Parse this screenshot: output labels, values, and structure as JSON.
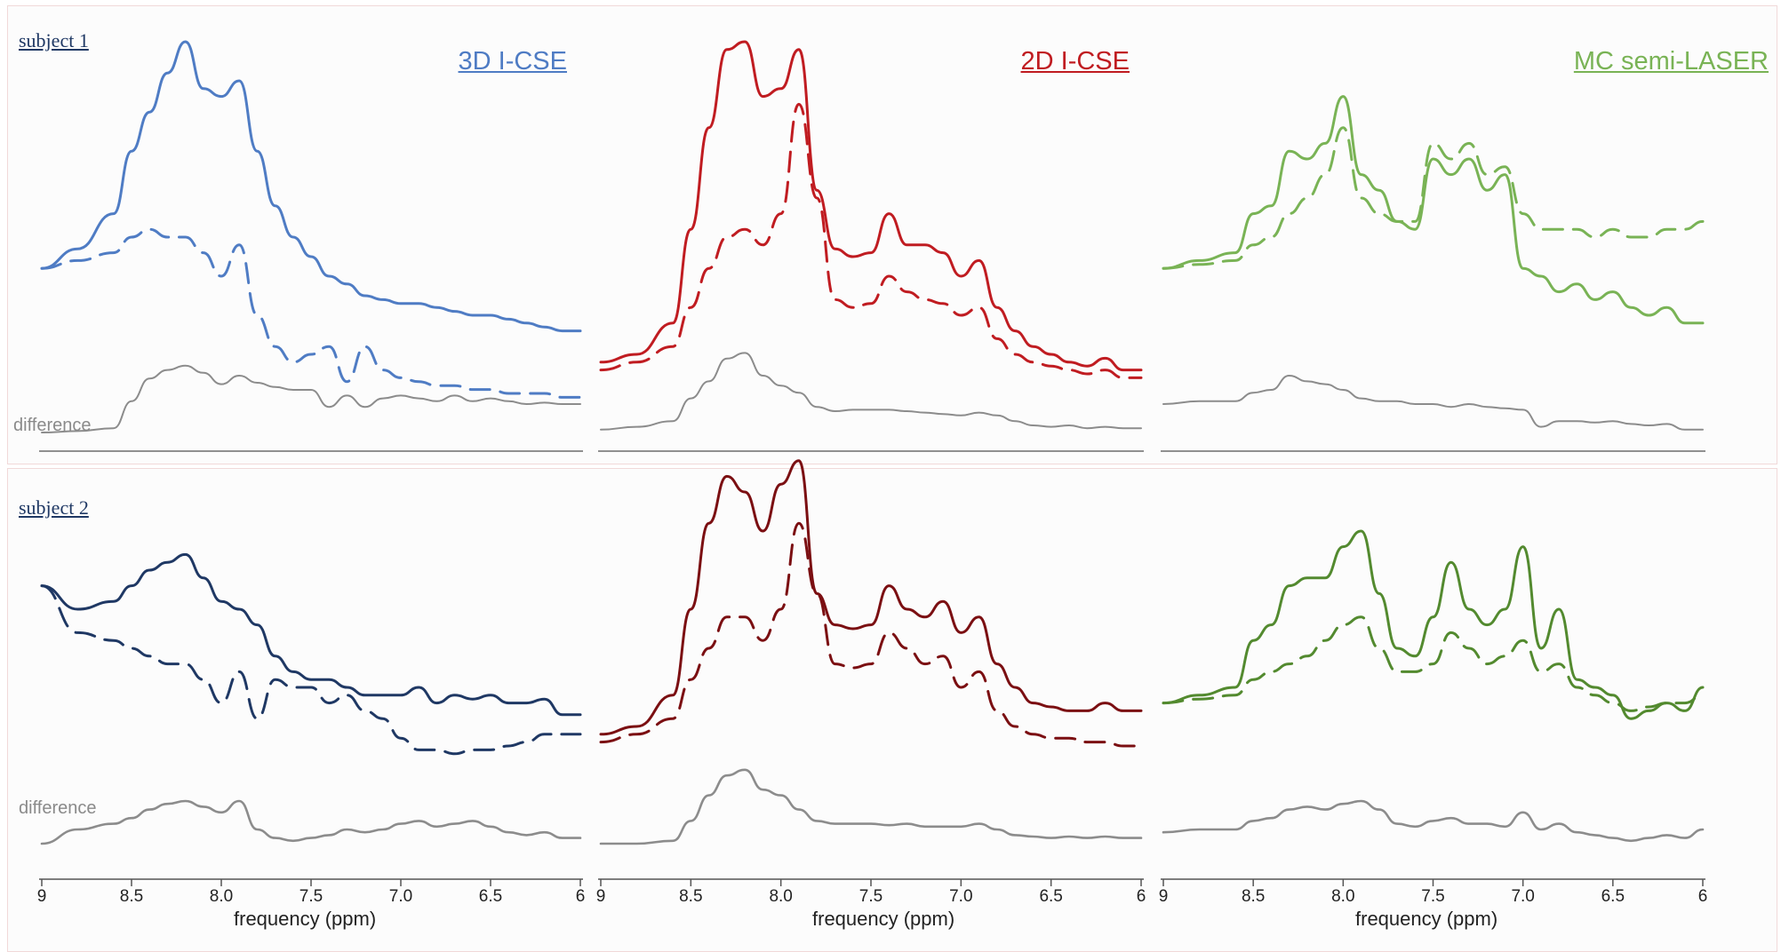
{
  "figure": {
    "subjects": [
      {
        "label": "subject 1",
        "difference_label": "difference"
      },
      {
        "label": "subject 2",
        "difference_label": "difference"
      }
    ],
    "methods": [
      {
        "title": "3D I-CSE",
        "color": "#4f7cc4"
      },
      {
        "title": "2D I-CSE",
        "color": "#c01c21"
      },
      {
        "title": "MC semi-LASER",
        "color": "#79b355"
      }
    ],
    "colors": {
      "subject2_3d": "#1f3864",
      "subject2_2d": "#7b0f12",
      "subject2_mc": "#538a2f",
      "difference": "#8c8c8c"
    }
  },
  "chart_data": [
    {
      "type": "line",
      "subject": "subject 1",
      "method": "3D I-CSE",
      "xlabel": "frequency (ppm)",
      "xlim": [
        9,
        6
      ],
      "x_reversed": true,
      "x_ticks": [
        9,
        8.5,
        8.0,
        7.5,
        7.0,
        6.5,
        6
      ],
      "x_tick_labels": [
        "9",
        "8.5",
        "8.0",
        "7.5",
        "7.0",
        "6.5",
        "6"
      ],
      "x": [
        9.0,
        8.8,
        8.6,
        8.5,
        8.4,
        8.3,
        8.2,
        8.1,
        8.0,
        7.9,
        7.8,
        7.7,
        7.6,
        7.5,
        7.4,
        7.3,
        7.2,
        7.1,
        7.0,
        6.9,
        6.8,
        6.7,
        6.6,
        6.5,
        6.4,
        6.3,
        6.2,
        6.1,
        6.0
      ],
      "series": [
        {
          "style": "solid",
          "values": [
            0.42,
            0.47,
            0.56,
            0.72,
            0.82,
            0.92,
            1.0,
            0.88,
            0.86,
            0.9,
            0.72,
            0.58,
            0.5,
            0.45,
            0.4,
            0.38,
            0.35,
            0.34,
            0.33,
            0.33,
            0.32,
            0.31,
            0.3,
            0.3,
            0.29,
            0.28,
            0.27,
            0.26,
            0.26
          ]
        },
        {
          "style": "dashed",
          "values": [
            0.42,
            0.44,
            0.46,
            0.5,
            0.52,
            0.5,
            0.5,
            0.46,
            0.4,
            0.48,
            0.3,
            0.22,
            0.18,
            0.2,
            0.22,
            0.13,
            0.22,
            0.16,
            0.14,
            0.13,
            0.12,
            0.12,
            0.11,
            0.11,
            0.1,
            0.1,
            0.1,
            0.09,
            0.09
          ]
        },
        {
          "style": "difference",
          "values": [
            0.0,
            0.01,
            0.03,
            0.22,
            0.38,
            0.44,
            0.47,
            0.42,
            0.34,
            0.4,
            0.35,
            0.32,
            0.3,
            0.3,
            0.18,
            0.26,
            0.18,
            0.24,
            0.26,
            0.24,
            0.22,
            0.26,
            0.22,
            0.24,
            0.22,
            0.2,
            0.21,
            0.2,
            0.2
          ]
        }
      ]
    },
    {
      "type": "line",
      "subject": "subject 1",
      "method": "2D I-CSE",
      "xlabel": "frequency (ppm)",
      "xlim": [
        9,
        6
      ],
      "x_reversed": true,
      "x_ticks": [
        9,
        8.5,
        8.0,
        7.5,
        7.0,
        6.5,
        6
      ],
      "x_tick_labels": [
        "9",
        "8.5",
        "8.0",
        "7.5",
        "7.0",
        "6.5",
        "6"
      ],
      "x": [
        9.0,
        8.8,
        8.6,
        8.5,
        8.4,
        8.3,
        8.2,
        8.1,
        8.0,
        7.9,
        7.8,
        7.7,
        7.6,
        7.5,
        7.4,
        7.3,
        7.2,
        7.1,
        7.0,
        6.9,
        6.8,
        6.7,
        6.6,
        6.5,
        6.4,
        6.3,
        6.2,
        6.1,
        6.0
      ],
      "series": [
        {
          "style": "solid",
          "values": [
            0.18,
            0.2,
            0.28,
            0.52,
            0.78,
            0.98,
            1.0,
            0.86,
            0.88,
            0.98,
            0.62,
            0.47,
            0.45,
            0.46,
            0.56,
            0.48,
            0.48,
            0.46,
            0.4,
            0.44,
            0.32,
            0.26,
            0.22,
            0.2,
            0.18,
            0.17,
            0.19,
            0.16,
            0.16
          ]
        },
        {
          "style": "dashed",
          "values": [
            0.16,
            0.18,
            0.22,
            0.32,
            0.42,
            0.5,
            0.52,
            0.48,
            0.56,
            0.84,
            0.6,
            0.34,
            0.32,
            0.33,
            0.4,
            0.36,
            0.34,
            0.33,
            0.3,
            0.32,
            0.24,
            0.2,
            0.18,
            0.17,
            0.16,
            0.15,
            0.16,
            0.14,
            0.14
          ]
        },
        {
          "style": "difference",
          "values": [
            0.02,
            0.04,
            0.08,
            0.24,
            0.36,
            0.52,
            0.56,
            0.4,
            0.33,
            0.28,
            0.18,
            0.15,
            0.16,
            0.16,
            0.16,
            0.15,
            0.14,
            0.13,
            0.12,
            0.14,
            0.12,
            0.08,
            0.05,
            0.04,
            0.05,
            0.03,
            0.04,
            0.03,
            0.03
          ]
        }
      ]
    },
    {
      "type": "line",
      "subject": "subject 1",
      "method": "MC semi-LASER",
      "xlabel": "frequency (ppm)",
      "xlim": [
        9,
        6
      ],
      "x_reversed": true,
      "x_ticks": [
        9,
        8.5,
        8.0,
        7.5,
        7.0,
        6.5,
        6
      ],
      "x_tick_labels": [
        "9",
        "8.5",
        "8.0",
        "7.5",
        "7.0",
        "6.5",
        "6"
      ],
      "x": [
        9.0,
        8.8,
        8.6,
        8.5,
        8.4,
        8.3,
        8.2,
        8.1,
        8.0,
        7.9,
        7.8,
        7.7,
        7.6,
        7.5,
        7.4,
        7.3,
        7.2,
        7.1,
        7.0,
        6.9,
        6.8,
        6.7,
        6.6,
        6.5,
        6.4,
        6.3,
        6.2,
        6.1,
        6.0
      ],
      "series": [
        {
          "style": "solid",
          "values": [
            0.42,
            0.44,
            0.46,
            0.56,
            0.58,
            0.72,
            0.7,
            0.74,
            0.86,
            0.66,
            0.62,
            0.54,
            0.52,
            0.7,
            0.66,
            0.7,
            0.62,
            0.66,
            0.42,
            0.4,
            0.36,
            0.38,
            0.34,
            0.36,
            0.32,
            0.3,
            0.32,
            0.28,
            0.28
          ]
        },
        {
          "style": "dashed",
          "values": [
            0.42,
            0.43,
            0.44,
            0.48,
            0.5,
            0.56,
            0.6,
            0.66,
            0.78,
            0.6,
            0.56,
            0.54,
            0.54,
            0.74,
            0.7,
            0.74,
            0.66,
            0.68,
            0.56,
            0.52,
            0.52,
            0.52,
            0.5,
            0.52,
            0.5,
            0.5,
            0.52,
            0.52,
            0.54
          ]
        },
        {
          "style": "difference",
          "values": [
            0.2,
            0.22,
            0.22,
            0.28,
            0.3,
            0.4,
            0.36,
            0.34,
            0.3,
            0.24,
            0.22,
            0.22,
            0.2,
            0.2,
            0.18,
            0.2,
            0.18,
            0.17,
            0.16,
            0.04,
            0.08,
            0.08,
            0.07,
            0.08,
            0.06,
            0.05,
            0.06,
            0.02,
            0.02
          ]
        }
      ]
    },
    {
      "type": "line",
      "subject": "subject 2",
      "method": "3D I-CSE",
      "xlabel": "frequency (ppm)",
      "xlim": [
        9,
        6
      ],
      "x_reversed": true,
      "x_ticks": [
        9,
        8.5,
        8.0,
        7.5,
        7.0,
        6.5,
        6
      ],
      "x_tick_labels": [
        "9",
        "8.5",
        "8.0",
        "7.5",
        "7.0",
        "6.5",
        "6"
      ],
      "x": [
        9.0,
        8.8,
        8.6,
        8.5,
        8.4,
        8.3,
        8.2,
        8.1,
        8.0,
        7.9,
        7.8,
        7.7,
        7.6,
        7.5,
        7.4,
        7.3,
        7.2,
        7.1,
        7.0,
        6.9,
        6.8,
        6.7,
        6.6,
        6.5,
        6.4,
        6.3,
        6.2,
        6.1,
        6.0
      ],
      "series": [
        {
          "style": "solid",
          "values": [
            0.66,
            0.6,
            0.62,
            0.66,
            0.7,
            0.72,
            0.74,
            0.68,
            0.62,
            0.6,
            0.56,
            0.48,
            0.44,
            0.42,
            0.42,
            0.4,
            0.38,
            0.38,
            0.38,
            0.4,
            0.36,
            0.38,
            0.37,
            0.38,
            0.36,
            0.36,
            0.37,
            0.33,
            0.33
          ]
        },
        {
          "style": "dashed",
          "values": [
            0.66,
            0.54,
            0.52,
            0.5,
            0.48,
            0.46,
            0.46,
            0.42,
            0.36,
            0.44,
            0.32,
            0.42,
            0.4,
            0.4,
            0.36,
            0.38,
            0.34,
            0.32,
            0.27,
            0.24,
            0.24,
            0.23,
            0.24,
            0.24,
            0.25,
            0.26,
            0.28,
            0.28,
            0.28
          ]
        },
        {
          "style": "difference",
          "values": [
            0.0,
            0.1,
            0.14,
            0.18,
            0.24,
            0.28,
            0.3,
            0.26,
            0.22,
            0.3,
            0.1,
            0.04,
            0.02,
            0.04,
            0.06,
            0.1,
            0.08,
            0.1,
            0.14,
            0.16,
            0.12,
            0.14,
            0.16,
            0.12,
            0.08,
            0.06,
            0.08,
            0.04,
            0.04
          ]
        }
      ]
    },
    {
      "type": "line",
      "subject": "subject 2",
      "method": "2D I-CSE",
      "xlabel": "frequency (ppm)",
      "xlim": [
        9,
        6
      ],
      "x_reversed": true,
      "x_ticks": [
        9,
        8.5,
        8.0,
        7.5,
        7.0,
        6.5,
        6
      ],
      "x_tick_labels": [
        "9",
        "8.5",
        "8.0",
        "7.5",
        "7.0",
        "6.5",
        "6"
      ],
      "x": [
        9.0,
        8.8,
        8.6,
        8.5,
        8.4,
        8.3,
        8.2,
        8.1,
        8.0,
        7.9,
        7.8,
        7.7,
        7.6,
        7.5,
        7.4,
        7.3,
        7.2,
        7.1,
        7.0,
        6.9,
        6.8,
        6.7,
        6.6,
        6.5,
        6.4,
        6.3,
        6.2,
        6.1,
        6.0
      ],
      "series": [
        {
          "style": "solid",
          "values": [
            0.28,
            0.3,
            0.38,
            0.6,
            0.82,
            0.94,
            0.9,
            0.8,
            0.92,
            0.98,
            0.64,
            0.56,
            0.55,
            0.56,
            0.66,
            0.6,
            0.58,
            0.62,
            0.54,
            0.58,
            0.46,
            0.4,
            0.36,
            0.35,
            0.34,
            0.34,
            0.36,
            0.34,
            0.34
          ]
        },
        {
          "style": "dashed",
          "values": [
            0.26,
            0.28,
            0.32,
            0.42,
            0.5,
            0.58,
            0.58,
            0.52,
            0.6,
            0.82,
            0.64,
            0.46,
            0.45,
            0.46,
            0.54,
            0.5,
            0.46,
            0.48,
            0.4,
            0.44,
            0.34,
            0.3,
            0.28,
            0.27,
            0.27,
            0.26,
            0.26,
            0.25,
            0.25
          ]
        },
        {
          "style": "difference",
          "values": [
            0.0,
            0.0,
            0.02,
            0.16,
            0.34,
            0.48,
            0.52,
            0.38,
            0.34,
            0.24,
            0.16,
            0.14,
            0.14,
            0.14,
            0.13,
            0.14,
            0.12,
            0.12,
            0.12,
            0.14,
            0.1,
            0.06,
            0.05,
            0.04,
            0.05,
            0.04,
            0.05,
            0.04,
            0.04
          ]
        }
      ]
    },
    {
      "type": "line",
      "subject": "subject 2",
      "method": "MC semi-LASER",
      "xlabel": "frequency (ppm)",
      "xlim": [
        9,
        6
      ],
      "x_reversed": true,
      "x_ticks": [
        9,
        8.5,
        8.0,
        7.5,
        7.0,
        6.5,
        6
      ],
      "x_tick_labels": [
        "9",
        "8.5",
        "8.0",
        "7.5",
        "7.0",
        "6.5",
        "6"
      ],
      "x": [
        9.0,
        8.8,
        8.6,
        8.5,
        8.4,
        8.3,
        8.2,
        8.1,
        8.0,
        7.9,
        7.8,
        7.7,
        7.6,
        7.5,
        7.4,
        7.3,
        7.2,
        7.1,
        7.0,
        6.9,
        6.8,
        6.7,
        6.6,
        6.5,
        6.4,
        6.3,
        6.2,
        6.1,
        6.0
      ],
      "series": [
        {
          "style": "solid",
          "values": [
            0.36,
            0.38,
            0.4,
            0.52,
            0.56,
            0.66,
            0.68,
            0.68,
            0.76,
            0.8,
            0.64,
            0.5,
            0.48,
            0.58,
            0.72,
            0.6,
            0.56,
            0.6,
            0.76,
            0.5,
            0.6,
            0.42,
            0.4,
            0.38,
            0.32,
            0.34,
            0.36,
            0.34,
            0.4
          ]
        },
        {
          "style": "dashed",
          "values": [
            0.36,
            0.37,
            0.38,
            0.42,
            0.44,
            0.46,
            0.48,
            0.52,
            0.56,
            0.58,
            0.5,
            0.44,
            0.44,
            0.46,
            0.54,
            0.5,
            0.46,
            0.48,
            0.52,
            0.44,
            0.46,
            0.4,
            0.38,
            0.36,
            0.34,
            0.35,
            0.36,
            0.36,
            0.38
          ]
        },
        {
          "style": "difference",
          "values": [
            0.08,
            0.1,
            0.1,
            0.16,
            0.18,
            0.24,
            0.26,
            0.24,
            0.28,
            0.3,
            0.24,
            0.14,
            0.12,
            0.16,
            0.18,
            0.14,
            0.14,
            0.12,
            0.22,
            0.1,
            0.14,
            0.08,
            0.06,
            0.04,
            0.02,
            0.04,
            0.06,
            0.04,
            0.1
          ]
        }
      ]
    }
  ]
}
